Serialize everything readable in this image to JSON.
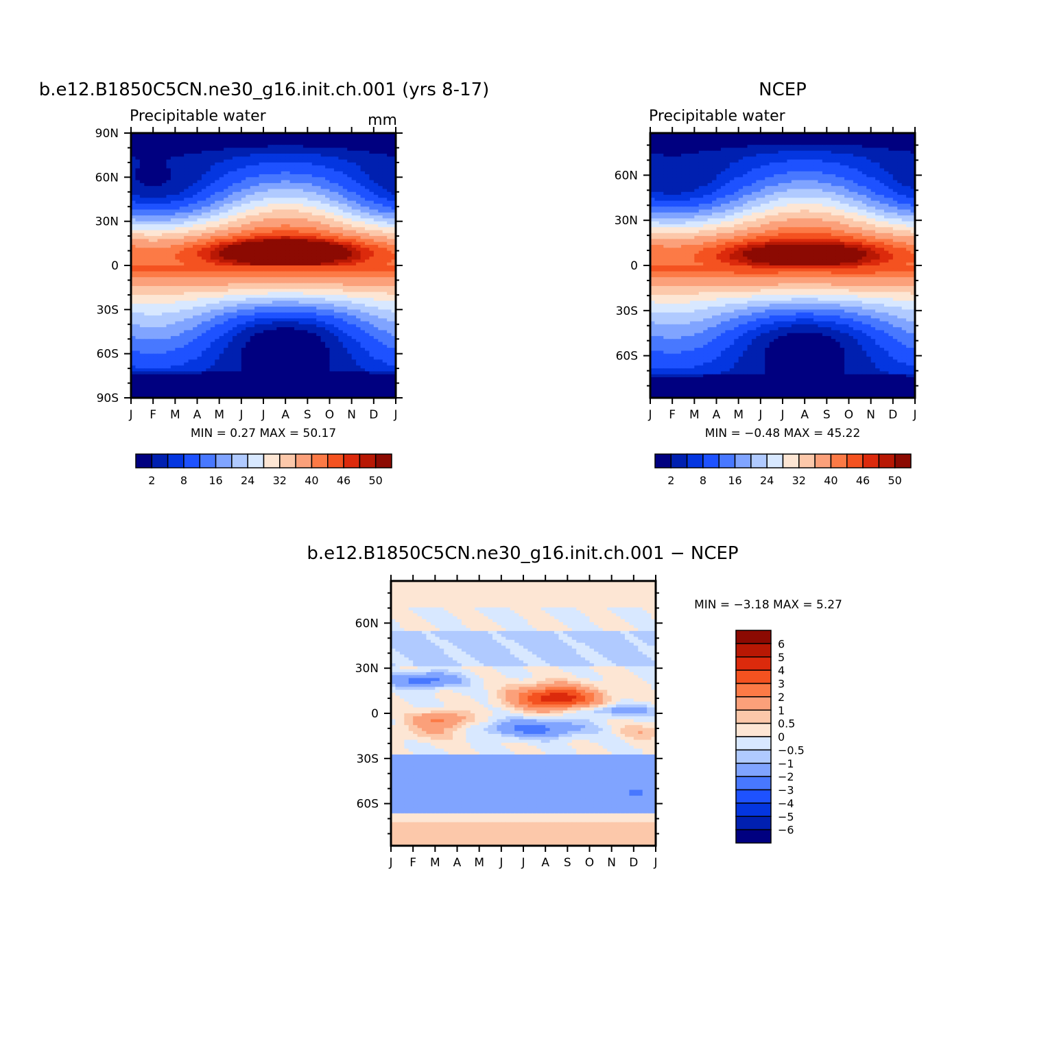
{
  "chart_data": [
    {
      "type": "heatmap",
      "id": "model",
      "title": "b.e12.B1850C5CN.ne30_g16.init.ch.001 (yrs 8-17)",
      "subtitle": "Precipitable water",
      "units": "mm",
      "x_labels": [
        "J",
        "F",
        "M",
        "A",
        "M",
        "J",
        "J",
        "A",
        "S",
        "O",
        "N",
        "D",
        "J"
      ],
      "y_labels": [
        "90N",
        "60N",
        "30N",
        "0",
        "30S",
        "60S",
        "90S"
      ],
      "y_values": [
        90,
        60,
        30,
        0,
        -30,
        -60,
        -90
      ],
      "ylim": [
        -90,
        90
      ],
      "stats_text": "MIN =    0.27  MAX =   50.17",
      "min": 0.27,
      "max": 50.17,
      "levels": [
        2,
        5,
        8,
        12,
        16,
        20,
        24,
        28,
        32,
        36,
        40,
        43,
        46,
        48,
        50
      ],
      "colorbar_labels": [
        "2",
        "8",
        "16",
        "24",
        "32",
        "40",
        "46",
        "50"
      ],
      "colors": [
        "#000080",
        "#0020b0",
        "#0436e0",
        "#1e52ff",
        "#4878ff",
        "#80a4ff",
        "#b0caff",
        "#d8e8ff",
        "#fde6d4",
        "#fcc8aa",
        "#fba07a",
        "#fc7a46",
        "#f45220",
        "#dc2a0c",
        "#b81804",
        "#8c0a02"
      ],
      "field": {
        "ampNH": 14,
        "ampSH": 11,
        "itczAmp": 9,
        "peakBoost": 6,
        "peakLat": 10,
        "peakMonth": 7
      }
    },
    {
      "type": "heatmap",
      "id": "ncep",
      "title": "NCEP",
      "subtitle": "Precipitable water",
      "x_labels": [
        "J",
        "F",
        "M",
        "A",
        "M",
        "J",
        "J",
        "A",
        "S",
        "O",
        "N",
        "D",
        "J"
      ],
      "y_labels": [
        "60N",
        "30N",
        "0",
        "30S",
        "60S"
      ],
      "y_values": [
        60,
        30,
        0,
        -30,
        -60
      ],
      "ylim": [
        -88,
        88
      ],
      "stats_text": "MIN =   −0.48  MAX =   45.22",
      "min": -0.48,
      "max": 45.22,
      "levels": [
        2,
        5,
        8,
        12,
        16,
        20,
        24,
        28,
        32,
        36,
        40,
        43,
        46,
        48,
        50
      ],
      "colorbar_labels": [
        "2",
        "8",
        "16",
        "24",
        "32",
        "40",
        "46",
        "50"
      ],
      "colors": [
        "#000080",
        "#0020b0",
        "#0436e0",
        "#1e52ff",
        "#4878ff",
        "#80a4ff",
        "#b0caff",
        "#d8e8ff",
        "#fde6d4",
        "#fcc8aa",
        "#fba07a",
        "#fc7a46",
        "#f45220",
        "#dc2a0c",
        "#b81804",
        "#8c0a02"
      ],
      "field": {
        "ampNH": 13,
        "ampSH": 10,
        "itczAmp": 7,
        "peakBoost": 0,
        "peakLat": 8,
        "peakMonth": 7
      }
    },
    {
      "type": "heatmap",
      "id": "diff",
      "title": "b.e12.B1850C5CN.ne30_g16.init.ch.001 − NCEP",
      "x_labels": [
        "J",
        "F",
        "M",
        "A",
        "M",
        "J",
        "J",
        "A",
        "S",
        "O",
        "N",
        "D",
        "J"
      ],
      "y_labels": [
        "60N",
        "30N",
        "0",
        "30S",
        "60S"
      ],
      "y_values": [
        60,
        30,
        0,
        -30,
        -60
      ],
      "ylim": [
        -88,
        88
      ],
      "stats_text": "MIN =   −3.18  MAX =     5.27",
      "min": -3.18,
      "max": 5.27,
      "levels": [
        -6,
        -5,
        -4,
        -3,
        -2,
        -1,
        -0.5,
        0,
        0.5,
        1,
        2,
        3,
        4,
        5,
        6
      ],
      "colorbar_labels": [
        "6",
        "5",
        "4",
        "3",
        "2",
        "1",
        "0.5",
        "0",
        "−0.5",
        "−1",
        "−2",
        "−3",
        "−4",
        "−5",
        "−6"
      ],
      "colors": [
        "#000080",
        "#0020b0",
        "#0436e0",
        "#1e52ff",
        "#4878ff",
        "#80a4ff",
        "#b0caff",
        "#d8e8ff",
        "#fde6d4",
        "#fcc8aa",
        "#fba07a",
        "#fc7a46",
        "#f45220",
        "#dc2a0c",
        "#b81804",
        "#8c0a02"
      ]
    }
  ]
}
